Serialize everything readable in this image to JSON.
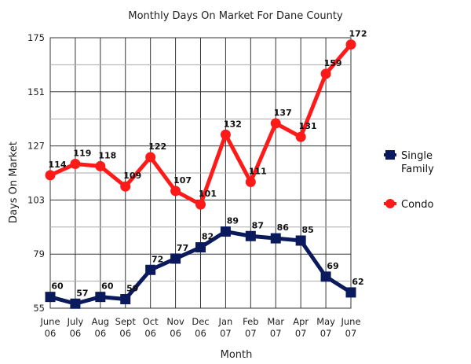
{
  "chart_data": {
    "type": "line",
    "title": "Monthly Days On Market For Dane County",
    "xlabel": "Month",
    "ylabel": "Days On Market",
    "categories": [
      [
        "June",
        "06"
      ],
      [
        "July",
        "06"
      ],
      [
        "Aug",
        "06"
      ],
      [
        "Sept",
        "06"
      ],
      [
        "Oct",
        "06"
      ],
      [
        "Nov",
        "06"
      ],
      [
        "Dec",
        "06"
      ],
      [
        "Jan",
        "07"
      ],
      [
        "Feb",
        "07"
      ],
      [
        "Mar",
        "07"
      ],
      [
        "Apr",
        "07"
      ],
      [
        "May",
        "07"
      ],
      [
        "June",
        "07"
      ]
    ],
    "ylim": [
      55,
      175
    ],
    "yticks": [
      "55",
      "79",
      "103",
      "127",
      "151",
      "175"
    ],
    "grid": true,
    "legend_position": "right",
    "series": [
      {
        "name": "Single Family",
        "legend_lines": [
          "Single",
          "Family"
        ],
        "color": "#0a1a5c",
        "marker": "square",
        "values": [
          60,
          57,
          60,
          59,
          72,
          77,
          82,
          89,
          87,
          86,
          85,
          69,
          62
        ]
      },
      {
        "name": "Condo",
        "legend_lines": [
          "Condo"
        ],
        "color": "#ff1a1a",
        "marker": "circle",
        "values": [
          114,
          119,
          118,
          109,
          122,
          107,
          101,
          132,
          111,
          137,
          131,
          159,
          172
        ]
      }
    ]
  }
}
